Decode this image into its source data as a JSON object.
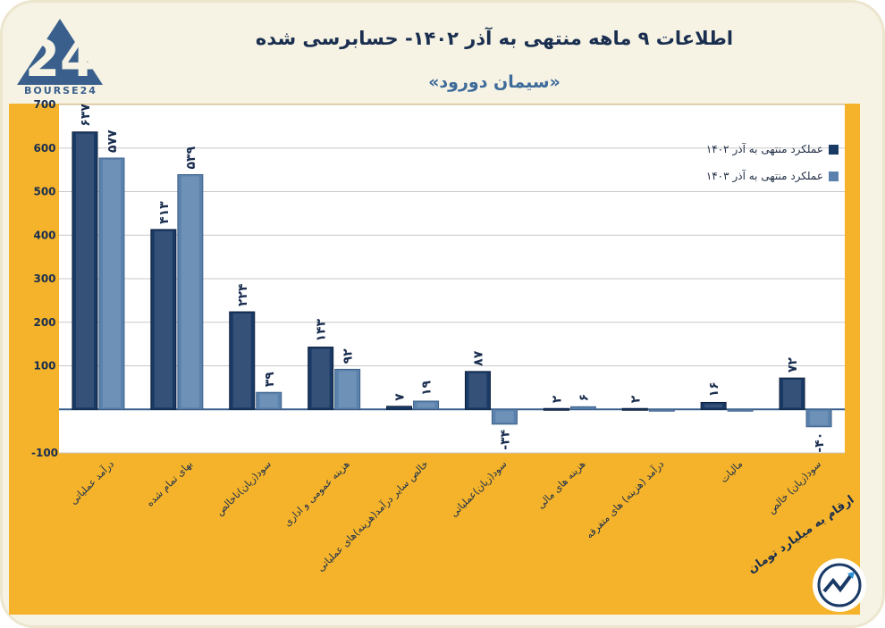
{
  "brand": {
    "logo_text": "BOURSE24"
  },
  "header": {
    "title": "اطلاعات ۹ ماهه منتهی به آذر ۱۴۰۲- حسابرسی شده",
    "subtitle": "«سیمان دورود»"
  },
  "colors": {
    "series1": "#1a3a66",
    "series2": "#5b82ad",
    "panel": "#f4b32a",
    "title": "#1a2e4f"
  },
  "chart_data": {
    "type": "bar",
    "title": "اطلاعات ۹ ماهه منتهی به آذر ۱۴۰۲- حسابرسی شده",
    "ylim": [
      -100,
      700
    ],
    "yticks": [
      -100,
      100,
      200,
      300,
      400,
      500,
      600,
      700
    ],
    "ytick_labels": [
      "-100",
      "100",
      "200",
      "300",
      "400",
      "500",
      "600",
      "700"
    ],
    "categories": [
      "درآمد عملیاتی",
      "بهای تمام شده",
      "سود(زیان)ناخالص",
      "هزینه عمومی و اداری",
      "خالص سایر درآمد(هزینه)های عملیاتی",
      "سود(زیان)عملیاتی",
      "هزینه های مالی",
      "درآمد (هزینه) های متفرقه",
      "مالیات",
      "سود(زیان) خالص"
    ],
    "series": [
      {
        "name": "عملکرد منتهی به آذر ۱۴۰۲",
        "values": [
          637,
          413,
          224,
          143,
          7,
          87,
          2,
          2,
          16,
          72
        ],
        "labels": [
          "۶۳۷",
          "۴۱۳",
          "۲۲۴",
          "۱۴۳",
          "۷",
          "۸۷",
          "۲",
          "۲",
          "۱۶",
          "۷۲"
        ]
      },
      {
        "name": "عملکرد منتهی به آذر ۱۴۰۳",
        "values": [
          577,
          539,
          39,
          92,
          19,
          -34,
          6,
          -2,
          0,
          -40
        ],
        "labels": [
          "۵۷۷",
          "۵۳۹",
          "۳۹",
          "۹۲",
          "۱۹",
          "-۳۴",
          "۶",
          "",
          "",
          "-۴۰"
        ]
      }
    ],
    "legend_position": "top-right",
    "grid": true
  },
  "footer": {
    "unit_note": "ارقام به میلیارد تومان"
  }
}
